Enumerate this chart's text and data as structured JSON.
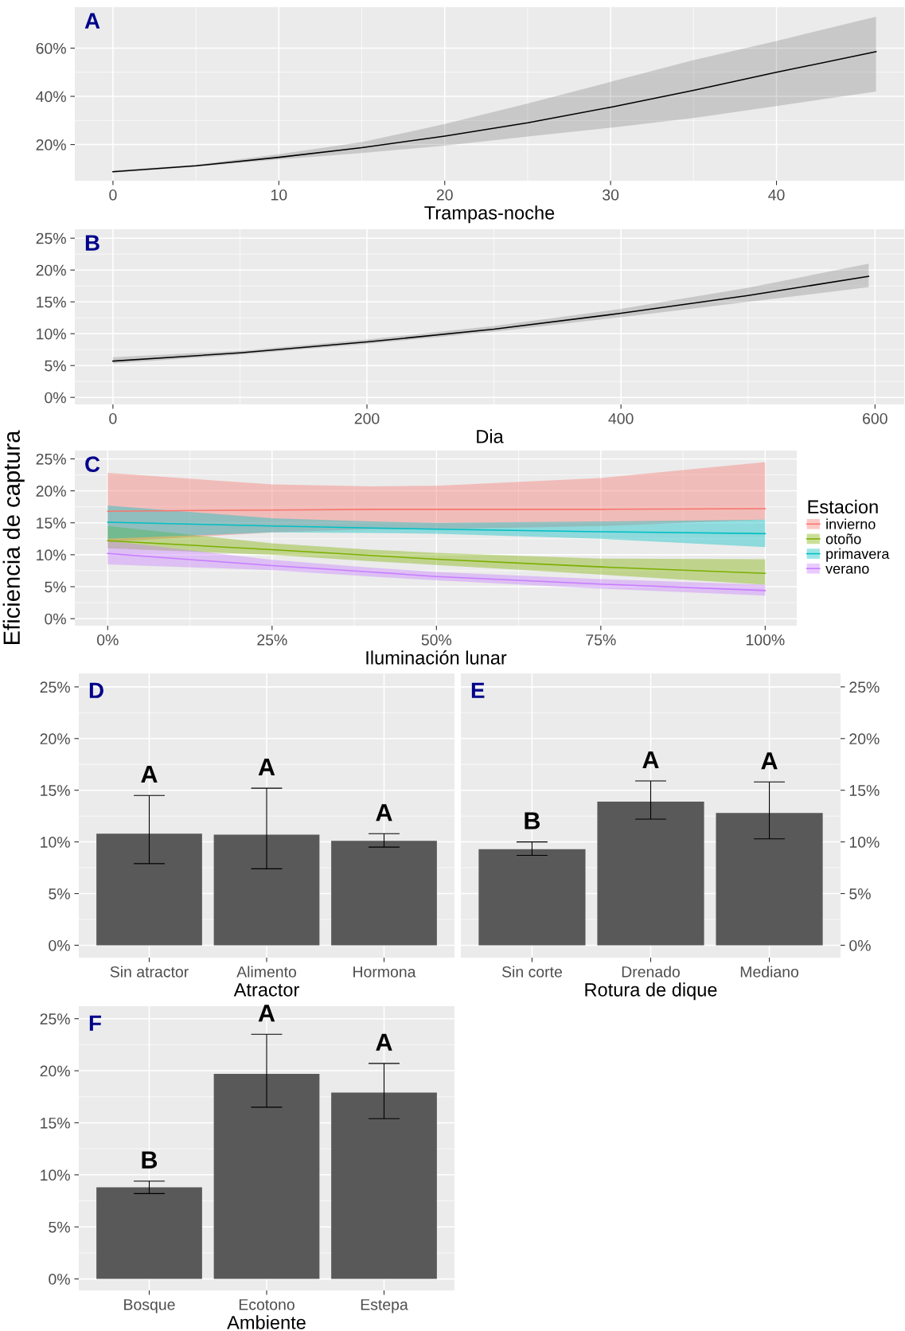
{
  "chart_data": [
    {
      "type": "line",
      "title": "A",
      "xlabel": "Trampas-noche",
      "xlim": [
        -2.3,
        47.7
      ],
      "xticks": [
        0,
        10,
        20,
        30,
        40
      ],
      "ylim": [
        5,
        77
      ],
      "yticks": [
        {
          "value": 20,
          "label": "20%"
        },
        {
          "value": 40,
          "label": "40%"
        },
        {
          "value": 60,
          "label": "60%"
        }
      ],
      "grid": true,
      "series": [
        {
          "color": "#000000",
          "x": [
            0,
            5,
            10,
            15,
            20,
            25,
            30,
            35,
            40,
            46
          ],
          "values": [
            8.7,
            11.2,
            14.7,
            18.7,
            23.5,
            29,
            35.5,
            42.5,
            50,
            58.5
          ],
          "lower": [
            8.3,
            10.8,
            13.8,
            16.5,
            19.5,
            23.3,
            27,
            31,
            36,
            42
          ],
          "upper": [
            9.2,
            11.6,
            16,
            21,
            28.5,
            37,
            46,
            55,
            63,
            73
          ]
        }
      ]
    },
    {
      "type": "line",
      "title": "B",
      "xlabel": "Dia",
      "xlim": [
        -30,
        623
      ],
      "xticks": [
        0,
        200,
        400,
        600
      ],
      "ylim": [
        -1.1,
        26.4
      ],
      "yticks": [
        {
          "value": 0,
          "label": "0%"
        },
        {
          "value": 5,
          "label": "5%"
        },
        {
          "value": 10,
          "label": "10%"
        },
        {
          "value": 15,
          "label": "15%"
        },
        {
          "value": 20,
          "label": "20%"
        },
        {
          "value": 25,
          "label": "25%"
        }
      ],
      "grid": true,
      "series": [
        {
          "color": "#000000",
          "x": [
            0,
            100,
            200,
            300,
            400,
            500,
            595
          ],
          "values": [
            5.7,
            7,
            8.7,
            10.7,
            13.2,
            16,
            19
          ],
          "lower": [
            5.3,
            6.7,
            8.4,
            10.3,
            12.6,
            15,
            17.3
          ],
          "upper": [
            6.3,
            7.3,
            9.1,
            11.2,
            13.9,
            17.2,
            21
          ]
        }
      ]
    },
    {
      "type": "line",
      "title": "C",
      "xlabel": "Iluminación lunar",
      "ylabel": "Eficiencia de captura",
      "legend_title": "Estacion",
      "legend": "right",
      "xlim": [
        -5,
        104.8
      ],
      "xticks": [
        {
          "value": 0,
          "label": "0%"
        },
        {
          "value": 25,
          "label": "25%"
        },
        {
          "value": 50,
          "label": "50%"
        },
        {
          "value": 75,
          "label": "75%"
        },
        {
          "value": 100,
          "label": "100%"
        }
      ],
      "ylim": [
        -1.1,
        26.3
      ],
      "yticks": [
        {
          "value": 0,
          "label": "0%"
        },
        {
          "value": 5,
          "label": "5%"
        },
        {
          "value": 10,
          "label": "10%"
        },
        {
          "value": 15,
          "label": "15%"
        },
        {
          "value": 20,
          "label": "20%"
        },
        {
          "value": 25,
          "label": "25%"
        }
      ],
      "grid": true,
      "series": [
        {
          "name": "invierno",
          "color": "#F8766D",
          "x": [
            0,
            25,
            40,
            50,
            75,
            100
          ],
          "values": [
            16.8,
            17,
            17.1,
            17.1,
            17.1,
            17.2
          ],
          "lower": [
            12,
            13.5,
            14,
            14,
            14.5,
            15.5
          ],
          "upper": [
            22.8,
            21,
            20.7,
            20.8,
            22,
            24.5
          ]
        },
        {
          "name": "otoño",
          "color": "#7CAE00",
          "x": [
            0,
            25,
            40,
            50,
            75,
            100
          ],
          "values": [
            12.2,
            10.8,
            9.9,
            9.3,
            8.1,
            7.1
          ],
          "lower": [
            11,
            10,
            9,
            8.4,
            6.9,
            5.3
          ],
          "upper": [
            14.5,
            11.8,
            10.8,
            10.3,
            9.4,
            9.3
          ]
        },
        {
          "name": "primavera",
          "color": "#00BFC4",
          "x": [
            0,
            25,
            40,
            50,
            75,
            100
          ],
          "values": [
            15.1,
            14.5,
            14.2,
            14,
            13.6,
            13.3
          ],
          "lower": [
            12.5,
            13.5,
            13.4,
            13.3,
            12.5,
            11.2
          ],
          "upper": [
            17.7,
            15.7,
            15.2,
            15,
            15.2,
            15.5
          ]
        },
        {
          "name": "verano",
          "color": "#C77CFF",
          "x": [
            0,
            25,
            40,
            50,
            75,
            100
          ],
          "values": [
            10.2,
            8.3,
            7.3,
            6.6,
            5.4,
            4.4
          ],
          "lower": [
            8.5,
            7.6,
            6.6,
            6,
            4.7,
            3.6
          ],
          "upper": [
            12.2,
            9.2,
            8,
            7.3,
            6.2,
            5.3
          ]
        }
      ]
    },
    {
      "type": "bar",
      "title": "D",
      "xlabel": "Atractor",
      "categories": [
        "Sin atractor",
        "Alimento",
        "Hormona"
      ],
      "ylim": [
        -1.2,
        26.3
      ],
      "yticks": [
        {
          "value": 0,
          "label": "0%"
        },
        {
          "value": 5,
          "label": "5%"
        },
        {
          "value": 10,
          "label": "10%"
        },
        {
          "value": 15,
          "label": "15%"
        },
        {
          "value": 20,
          "label": "20%"
        },
        {
          "value": 25,
          "label": "25%"
        }
      ],
      "grid": true,
      "series": [
        {
          "color": "#595959",
          "values": [
            10.8,
            10.7,
            10.1
          ],
          "errors": [
            [
              7.9,
              14.5
            ],
            [
              7.4,
              15.2
            ],
            [
              9.5,
              10.8
            ]
          ]
        }
      ],
      "annotations": [
        "A",
        "A",
        "A"
      ]
    },
    {
      "type": "bar",
      "title": "E",
      "xlabel": "Rotura de dique",
      "categories": [
        "Sin corte",
        "Drenado",
        "Mediano"
      ],
      "y2lim": [
        -1.2,
        26.3
      ],
      "y2ticks": [
        {
          "value": 0,
          "label": "0%"
        },
        {
          "value": 5,
          "label": "5%"
        },
        {
          "value": 10,
          "label": "10%"
        },
        {
          "value": 15,
          "label": "15%"
        },
        {
          "value": 20,
          "label": "20%"
        },
        {
          "value": 25,
          "label": "25%"
        }
      ],
      "grid": true,
      "series": [
        {
          "color": "#595959",
          "axis": "y2",
          "values": [
            9.3,
            13.9,
            12.8
          ],
          "errors": [
            [
              8.7,
              10
            ],
            [
              12.2,
              15.9
            ],
            [
              10.3,
              15.8
            ]
          ]
        }
      ],
      "annotations": [
        "B",
        "A",
        "A"
      ]
    },
    {
      "type": "bar",
      "title": "F",
      "xlabel": "Ambiente",
      "categories": [
        "Bosque",
        "Ecotono",
        "Estepa"
      ],
      "ylim": [
        -1.1,
        26.2
      ],
      "yticks": [
        {
          "value": 0,
          "label": "0%"
        },
        {
          "value": 5,
          "label": "5%"
        },
        {
          "value": 10,
          "label": "10%"
        },
        {
          "value": 15,
          "label": "15%"
        },
        {
          "value": 20,
          "label": "20%"
        },
        {
          "value": 25,
          "label": "25%"
        }
      ],
      "grid": true,
      "series": [
        {
          "color": "#595959",
          "values": [
            8.8,
            19.7,
            17.9
          ],
          "errors": [
            [
              8.2,
              9.4
            ],
            [
              16.5,
              23.5
            ],
            [
              15.4,
              20.7
            ]
          ]
        }
      ],
      "annotations": [
        "B",
        "A",
        "A"
      ]
    }
  ]
}
